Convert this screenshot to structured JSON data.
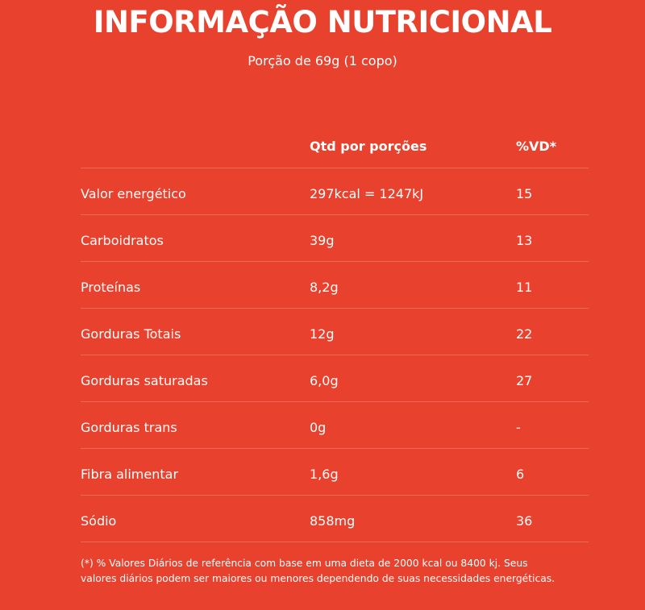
{
  "title": "INFORMAÇÃO NUTRICIONAL",
  "serving": "Porção de 69g (1 copo)",
  "table": {
    "headers": {
      "name": "",
      "qty": "Qtd por porções",
      "vd": "%VD*"
    },
    "rows": [
      {
        "name": "Valor energético",
        "qty": "297kcal = 1247kJ",
        "vd": "15"
      },
      {
        "name": "Carboidratos",
        "qty": "39g",
        "vd": "13"
      },
      {
        "name": "Proteínas",
        "qty": "8,2g",
        "vd": "11"
      },
      {
        "name": "Gorduras Totais",
        "qty": "12g",
        "vd": "22"
      },
      {
        "name": "Gorduras saturadas",
        "qty": "6,0g",
        "vd": "27"
      },
      {
        "name": "Gorduras trans",
        "qty": "0g",
        "vd": "-"
      },
      {
        "name": "Fibra alimentar",
        "qty": "1,6g",
        "vd": "6"
      },
      {
        "name": "Sódio",
        "qty": "858mg",
        "vd": "36"
      }
    ]
  },
  "footnote": {
    "line1": "(*) % Valores Diários de referência com base em uma dieta de 2000 kcal ou 8400 kj. Seus",
    "line2": "valores diários podem ser maiores ou menores dependendo de suas necessidades energéticas."
  }
}
